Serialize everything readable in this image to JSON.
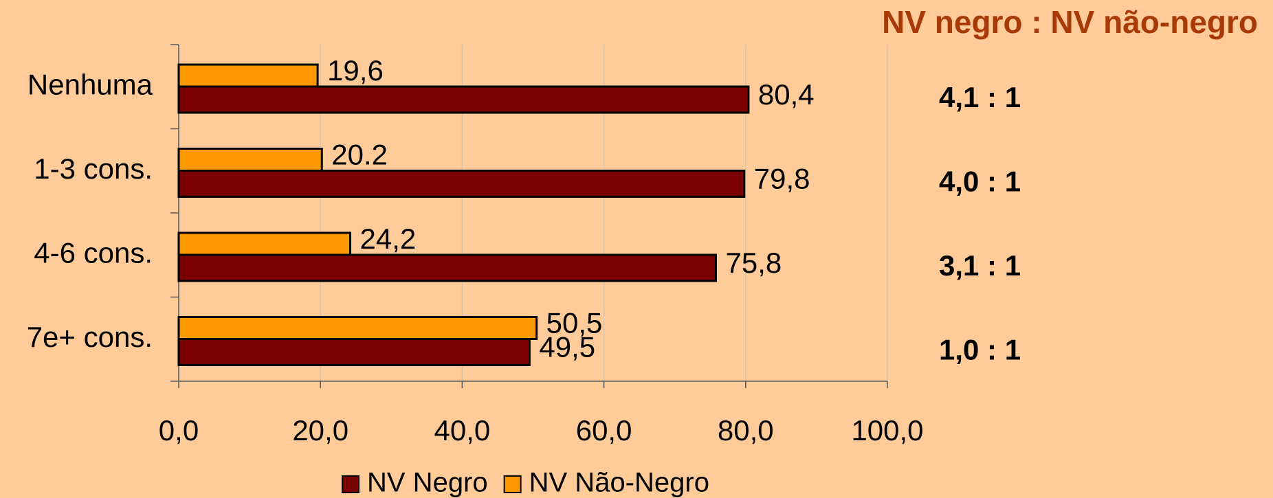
{
  "chart_data": {
    "type": "bar",
    "orientation": "horizontal",
    "title": "NV negro : NV não-negro",
    "categories": [
      "Nenhuma",
      "1-3 cons.",
      "4-6 cons.",
      "7e+ cons."
    ],
    "series": [
      {
        "name": "NV Negro",
        "color": "#7b0000",
        "values": [
          80.4,
          79.8,
          75.8,
          49.5
        ],
        "value_labels": [
          "80,4",
          "79,8",
          "75,8",
          "49,5"
        ]
      },
      {
        "name": "NV Não-Negro",
        "color": "#ff9900",
        "values": [
          19.6,
          20.2,
          24.2,
          50.5
        ],
        "value_labels": [
          "19,6",
          "20.2",
          "24,2",
          "50,5"
        ]
      }
    ],
    "annotations": [
      "4,1 : 1",
      "4,0 : 1",
      "3,1 : 1",
      "1,0 : 1"
    ],
    "xlim": [
      0,
      100
    ],
    "xticks": [
      {
        "value": 0,
        "label": "0,0"
      },
      {
        "value": 20,
        "label": "20,0"
      },
      {
        "value": 40,
        "label": "40,0"
      },
      {
        "value": 60,
        "label": "60,0"
      },
      {
        "value": 80,
        "label": "80,0"
      },
      {
        "value": 100,
        "label": "100,0"
      }
    ],
    "grid": true,
    "legend": "bottom"
  }
}
